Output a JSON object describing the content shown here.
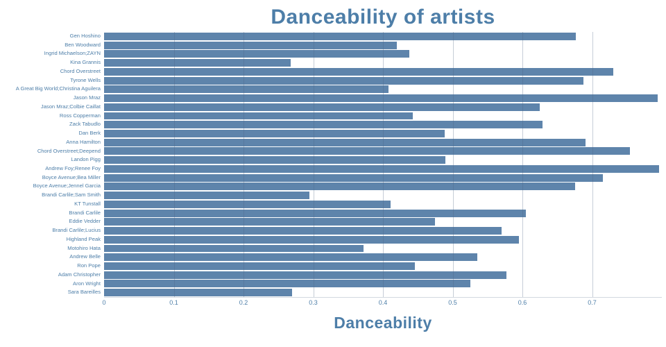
{
  "chart_data": {
    "type": "bar",
    "orientation": "horizontal",
    "title": "Danceability of artists",
    "xlabel": "Danceability",
    "ylabel": "",
    "xlim": [
      0,
      0.8
    ],
    "xticks": [
      0,
      0.1,
      0.2,
      0.3,
      0.4,
      0.5,
      0.6,
      0.7
    ],
    "grid": "vertical",
    "legend": "none",
    "categories": [
      "Gen Hoshino",
      "Ben Woodward",
      "Ingrid Michaelson;ZAYN",
      "Kina Grannis",
      "Chord Overstreet",
      "Tyrone Wells",
      "A Great Big World;Christina Aguilera",
      "Jason Mraz",
      "Jason Mraz;Colbie Caillat",
      "Ross Copperman",
      "Zack Tabudlo",
      "Dan Berk",
      "Anna Hamilton",
      "Chord Overstreet;Deepend",
      "Landon Pigg",
      "Andrew Foy;Renee Foy",
      "Boyce Avenue;Bea Miller",
      "Boyce Avenue;Jennel Garcia",
      "Brandi Carlile;Sam Smith",
      "KT Tunstall",
      "Brandi Carlile",
      "Eddie Vedder",
      "Brandi Carlile;Lucius",
      "Highland Peak",
      "Motohiro Hata",
      "Andrew Belle",
      "Ron Pope",
      "Adam Christopher",
      "Aron Wright",
      "Sara Bareilles"
    ],
    "values": [
      0.677,
      0.42,
      0.438,
      0.268,
      0.73,
      0.688,
      0.408,
      0.794,
      0.625,
      0.443,
      0.629,
      0.489,
      0.691,
      0.754,
      0.49,
      0.796,
      0.715,
      0.676,
      0.295,
      0.411,
      0.605,
      0.475,
      0.57,
      0.595,
      0.372,
      0.535,
      0.446,
      0.577,
      0.525,
      0.27
    ],
    "colors": {
      "bar": "#5e84ab",
      "text": "#4d7ea8",
      "gridline": "rgba(77,100,130,0.32)",
      "background": "#ffffff"
    }
  }
}
